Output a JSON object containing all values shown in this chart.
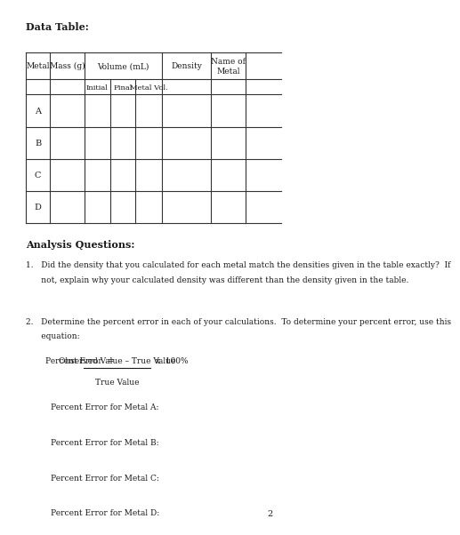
{
  "title": "Data Table:",
  "analysis_title": "Analysis Questions:",
  "background_color": "#ffffff",
  "table": {
    "rows": [
      "A",
      "B",
      "C",
      "D"
    ]
  },
  "question1_line1": "1.   Did the density that you calculated for each metal match the densities given in the table exactly?  If",
  "question1_line2": "      not, explain why your calculated density was different than the density given in the table.",
  "question2_line1": "2.   Determine the percent error in each of your calculations.  To determine your percent error, use this",
  "question2_line2": "      equation:",
  "formula_label": "Percent Error  =",
  "formula_numerator": "Observed Value – True Value",
  "formula_denominator": "True Value",
  "formula_multiplier": " x  100%",
  "percent_errors": [
    "Percent Error for Metal A:",
    "Percent Error for Metal B:",
    "Percent Error for Metal C:",
    "Percent Error for Metal D:"
  ],
  "page_number": "2",
  "font_family": "serif",
  "text_color": "#1a1a1a"
}
